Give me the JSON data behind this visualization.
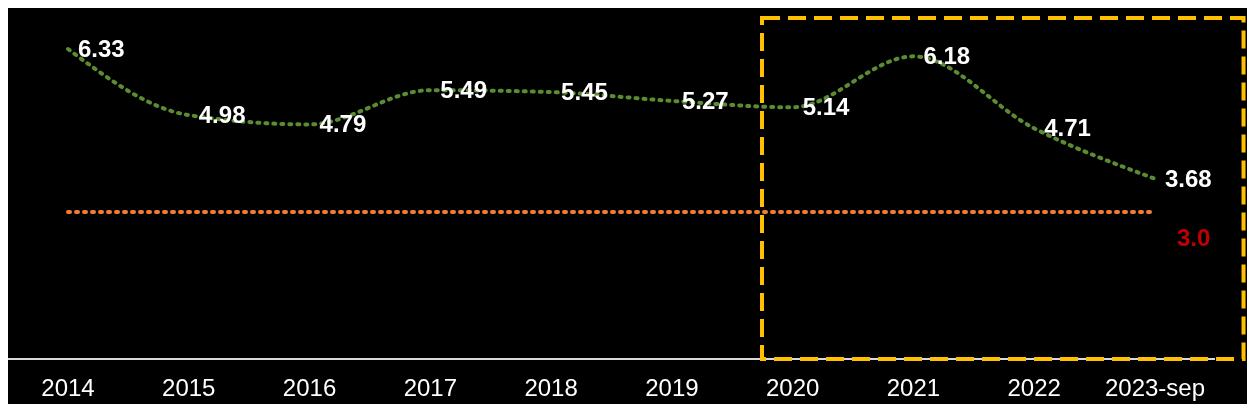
{
  "chart_data": {
    "type": "line",
    "categories": [
      "2014",
      "2015",
      "2016",
      "2017",
      "2018",
      "2019",
      "2020",
      "2021",
      "2022",
      "2023-sep"
    ],
    "series": [
      {
        "color": "#5b8c32",
        "values": [
          6.33,
          4.98,
          4.79,
          5.49,
          5.45,
          5.27,
          5.14,
          6.18,
          4.71,
          3.68
        ]
      }
    ],
    "data_labels": true,
    "line_style": "dotted",
    "marker": "none",
    "grid": false,
    "legend": false,
    "ref_lines": [
      {
        "axis": "y",
        "value": 3.0,
        "label": "3.0",
        "color": "#ed7d31",
        "line_style": "dotted"
      }
    ]
  }
}
